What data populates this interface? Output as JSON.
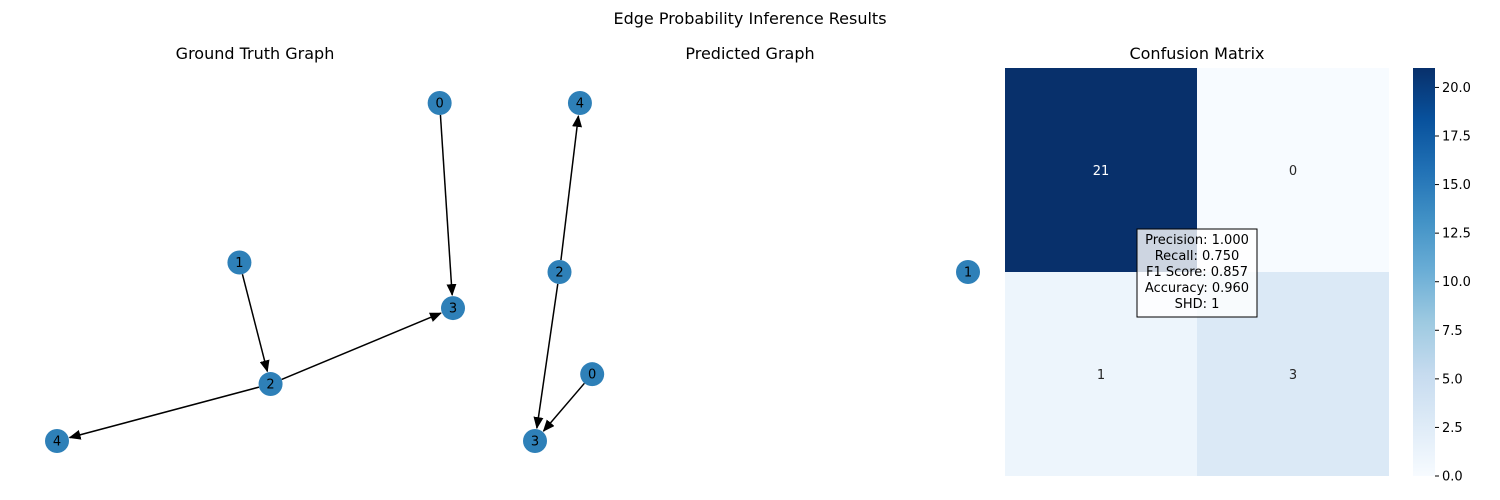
{
  "figure": {
    "title": "Edge Probability Inference Results"
  },
  "chart_data": [
    {
      "type": "graph",
      "title": "Ground Truth Graph",
      "nodes": [
        {
          "id": "0",
          "x": 0.63,
          "y": 0.89
        },
        {
          "id": "1",
          "x": 0.18,
          "y": 0.47
        },
        {
          "id": "2",
          "x": 0.25,
          "y": 0.15
        },
        {
          "id": "3",
          "x": 0.66,
          "y": 0.35
        },
        {
          "id": "4",
          "x": -0.23,
          "y": 0.0
        }
      ],
      "edges": [
        {
          "source": "0",
          "target": "3"
        },
        {
          "source": "1",
          "target": "2"
        },
        {
          "source": "2",
          "target": "3"
        },
        {
          "source": "2",
          "target": "4"
        }
      ],
      "node_color": "#2e80b8"
    },
    {
      "type": "graph",
      "title": "Predicted Graph",
      "nodes": [
        {
          "id": "4",
          "x": 0.05,
          "y": 0.86
        },
        {
          "id": "2",
          "x": 0.0,
          "y": 0.43
        },
        {
          "id": "0",
          "x": 0.08,
          "y": 0.17
        },
        {
          "id": "3",
          "x": -0.06,
          "y": 0.0
        },
        {
          "id": "1",
          "x": 1.0,
          "y": 0.43
        }
      ],
      "edges": [
        {
          "source": "2",
          "target": "4"
        },
        {
          "source": "2",
          "target": "3"
        },
        {
          "source": "0",
          "target": "3"
        }
      ],
      "node_color": "#2e80b8"
    },
    {
      "type": "heatmap",
      "title": "Confusion Matrix",
      "matrix": [
        [
          21,
          0
        ],
        [
          1,
          3
        ]
      ],
      "colormap": "Blues",
      "colorbar": {
        "min": 0,
        "max": 21,
        "ticks": [
          "0.0",
          "2.5",
          "5.0",
          "7.5",
          "10.0",
          "12.5",
          "15.0",
          "17.5",
          "20.0"
        ]
      },
      "metrics": [
        "Precision: 1.000",
        "Recall: 0.750",
        "F1 Score: 0.857",
        "Accuracy: 0.960",
        "SHD: 1"
      ]
    }
  ]
}
